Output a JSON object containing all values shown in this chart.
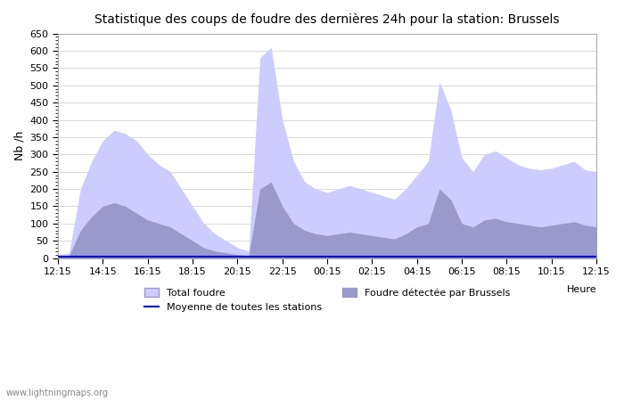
{
  "title": "Statistique des coups de foudre des dernières 24h pour la station: Brussels",
  "ylabel": "Nb /h",
  "xlabel": "Heure",
  "ylim": [
    0,
    650
  ],
  "yticks": [
    0,
    50,
    100,
    150,
    200,
    250,
    300,
    350,
    400,
    450,
    500,
    550,
    600,
    650
  ],
  "xtick_labels": [
    "12:15",
    "14:15",
    "16:15",
    "18:15",
    "20:15",
    "22:15",
    "00:15",
    "02:15",
    "04:15",
    "06:15",
    "08:15",
    "10:15",
    "12:15"
  ],
  "background_color": "#ffffff",
  "plot_bg_color": "#ffffff",
  "grid_color": "#cccccc",
  "color_total": "#ccccff",
  "color_local": "#9999cc",
  "color_mean": "#0000cc",
  "watermark": "www.lightningmaps.org",
  "legend_total": "Total foudre",
  "legend_mean": "Moyenne de toutes les stations",
  "legend_local": "Foudre détectée par Brussels",
  "x_positions": [
    0,
    1,
    2,
    3,
    4,
    5,
    6,
    7,
    8,
    9,
    10,
    11,
    12,
    13,
    14,
    15,
    16,
    17,
    18,
    19,
    20,
    21,
    22,
    23,
    24,
    25,
    26,
    27,
    28,
    29,
    30,
    31,
    32,
    33,
    34,
    35,
    36,
    37,
    38,
    39,
    40,
    41,
    42,
    43,
    44,
    45,
    46,
    47,
    48
  ],
  "total_values": [
    10,
    15,
    200,
    280,
    340,
    370,
    360,
    340,
    300,
    270,
    250,
    200,
    150,
    100,
    70,
    50,
    30,
    20,
    580,
    610,
    400,
    280,
    220,
    200,
    190,
    200,
    210,
    200,
    190,
    180,
    170,
    200,
    240,
    280,
    510,
    430,
    290,
    250,
    300,
    310,
    290,
    270,
    260,
    255,
    260,
    270,
    280,
    255,
    250
  ],
  "local_values": [
    5,
    8,
    80,
    120,
    150,
    160,
    150,
    130,
    110,
    100,
    90,
    70,
    50,
    30,
    20,
    15,
    10,
    8,
    200,
    220,
    150,
    100,
    80,
    70,
    65,
    70,
    75,
    70,
    65,
    60,
    55,
    70,
    90,
    100,
    200,
    170,
    100,
    90,
    110,
    115,
    105,
    100,
    95,
    90,
    95,
    100,
    105,
    95,
    90
  ],
  "mean_values": [
    5,
    5,
    5,
    5,
    5,
    5,
    5,
    5,
    5,
    5,
    5,
    5,
    5,
    5,
    5,
    5,
    5,
    5,
    5,
    5,
    5,
    5,
    5,
    5,
    5,
    5,
    5,
    5,
    5,
    5,
    5,
    5,
    5,
    5,
    5,
    5,
    5,
    5,
    5,
    5,
    5,
    5,
    5,
    5,
    5,
    5,
    5,
    5,
    5
  ]
}
